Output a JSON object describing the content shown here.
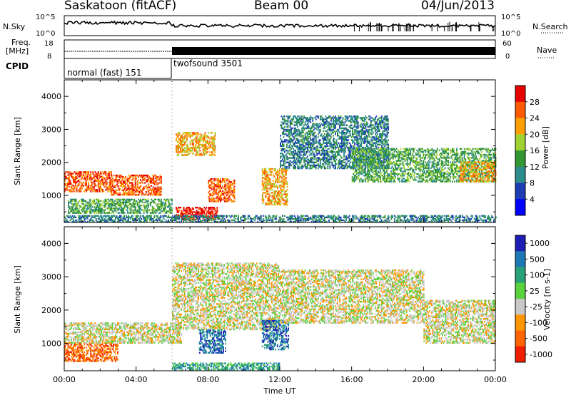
{
  "header": {
    "station": "Saskatoon (fitACF)",
    "beam": "Beam 00",
    "date": "04/Jun/2013"
  },
  "strip": {
    "nsky_label": "N.Sky",
    "nsky_ticks": [
      "10^5",
      "10^0"
    ],
    "nsearch_label": "N.Search",
    "nsearch_ticks": [
      "10^5",
      "10^0"
    ],
    "freq_label_1": "Freq.",
    "freq_label_2": "[MHz]",
    "freq_ticks": [
      "18",
      "8"
    ],
    "nave_label": "Nave",
    "nave_ticks": [
      "60",
      "0"
    ],
    "cpid_label": "CPID",
    "cpid_segments": [
      {
        "name": "normal (fast) 151",
        "start_h": 0,
        "end_h": 6.0
      },
      {
        "name": "twofsound 3501",
        "start_h": 6.0,
        "end_h": 24
      }
    ]
  },
  "colors": {
    "power": [
      "#0000ff",
      "#1e3cb4",
      "#2d8c8c",
      "#329632",
      "#a0d232",
      "#ffa000",
      "#ff5a00",
      "#e60000"
    ],
    "velocity": [
      "#1e1eb4",
      "#1e78b4",
      "#28a078",
      "#5ad23c",
      "#c8c8c8",
      "#ff9600",
      "#ff6400",
      "#f01e00"
    ]
  },
  "chart_data": [
    {
      "type": "heatmap",
      "title": "",
      "xlabel": "",
      "ylabel": "Slant Range [km]",
      "xlim": [
        0,
        24
      ],
      "ylim": [
        180,
        4500
      ],
      "yticks": [
        1000,
        2000,
        3000,
        4000
      ],
      "colorbar": {
        "label": "Power [dB]",
        "ticks": [
          "4",
          "8",
          "12",
          "16",
          "20",
          "24",
          "28"
        ],
        "range": [
          0,
          32
        ]
      },
      "echo_regions": [
        {
          "t0": 0.0,
          "t1": 2.6,
          "r0": 1100,
          "r1": 1700,
          "level": 26
        },
        {
          "t0": 2.6,
          "t1": 5.4,
          "r0": 1000,
          "r1": 1600,
          "level": 24
        },
        {
          "t0": 0.2,
          "t1": 6.0,
          "r0": 450,
          "r1": 900,
          "level": 14
        },
        {
          "t0": 6.2,
          "t1": 8.4,
          "r0": 2200,
          "r1": 2900,
          "level": 20
        },
        {
          "t0": 6.2,
          "t1": 8.5,
          "r0": 250,
          "r1": 650,
          "level": 28
        },
        {
          "t0": 8.0,
          "t1": 9.5,
          "r0": 800,
          "r1": 1500,
          "level": 24
        },
        {
          "t0": 11.0,
          "t1": 12.4,
          "r0": 700,
          "r1": 1800,
          "level": 22
        },
        {
          "t0": 12.0,
          "t1": 18.0,
          "r0": 1800,
          "r1": 3400,
          "level": 8
        },
        {
          "t0": 16.0,
          "t1": 24.0,
          "r0": 1400,
          "r1": 2400,
          "level": 12
        },
        {
          "t0": 22.0,
          "t1": 24.0,
          "r0": 1400,
          "r1": 2000,
          "level": 20
        },
        {
          "t0": 0.0,
          "t1": 24.0,
          "r0": 180,
          "r1": 380,
          "level": 10
        }
      ]
    },
    {
      "type": "heatmap",
      "title": "",
      "xlabel": "Time UT",
      "ylabel": "Slant Range [km]",
      "xlim": [
        0,
        24
      ],
      "ylim": [
        180,
        4500
      ],
      "yticks": [
        1000,
        2000,
        3000,
        4000
      ],
      "xticks": [
        "00:00",
        "04:00",
        "08:00",
        "12:00",
        "16:00",
        "20:00",
        "00:00"
      ],
      "colorbar": {
        "label": "Velocity [m s-1]",
        "ticks": [
          "1000",
          "500",
          "100",
          "25",
          "-25",
          "-100",
          "-500",
          "-1000"
        ],
        "range": [
          -1000,
          1000
        ]
      },
      "echo_regions": [
        {
          "t0": 0.0,
          "t1": 3.0,
          "r0": 450,
          "r1": 1000,
          "level": -300
        },
        {
          "t0": 0.0,
          "t1": 6.5,
          "r0": 1000,
          "r1": 1600,
          "level": 0
        },
        {
          "t0": 6.0,
          "t1": 12.0,
          "r0": 1400,
          "r1": 3400,
          "level": 0
        },
        {
          "t0": 7.5,
          "t1": 9.0,
          "r0": 700,
          "r1": 1400,
          "level": 300
        },
        {
          "t0": 11.0,
          "t1": 12.5,
          "r0": 800,
          "r1": 1700,
          "level": 150
        },
        {
          "t0": 6.0,
          "t1": 12.0,
          "r0": 200,
          "r1": 400,
          "level": 60
        },
        {
          "t0": 12.0,
          "t1": 20.0,
          "r0": 1600,
          "r1": 3200,
          "level": 0
        },
        {
          "t0": 20.0,
          "t1": 24.0,
          "r0": 1000,
          "r1": 2300,
          "level": 0
        }
      ]
    }
  ]
}
